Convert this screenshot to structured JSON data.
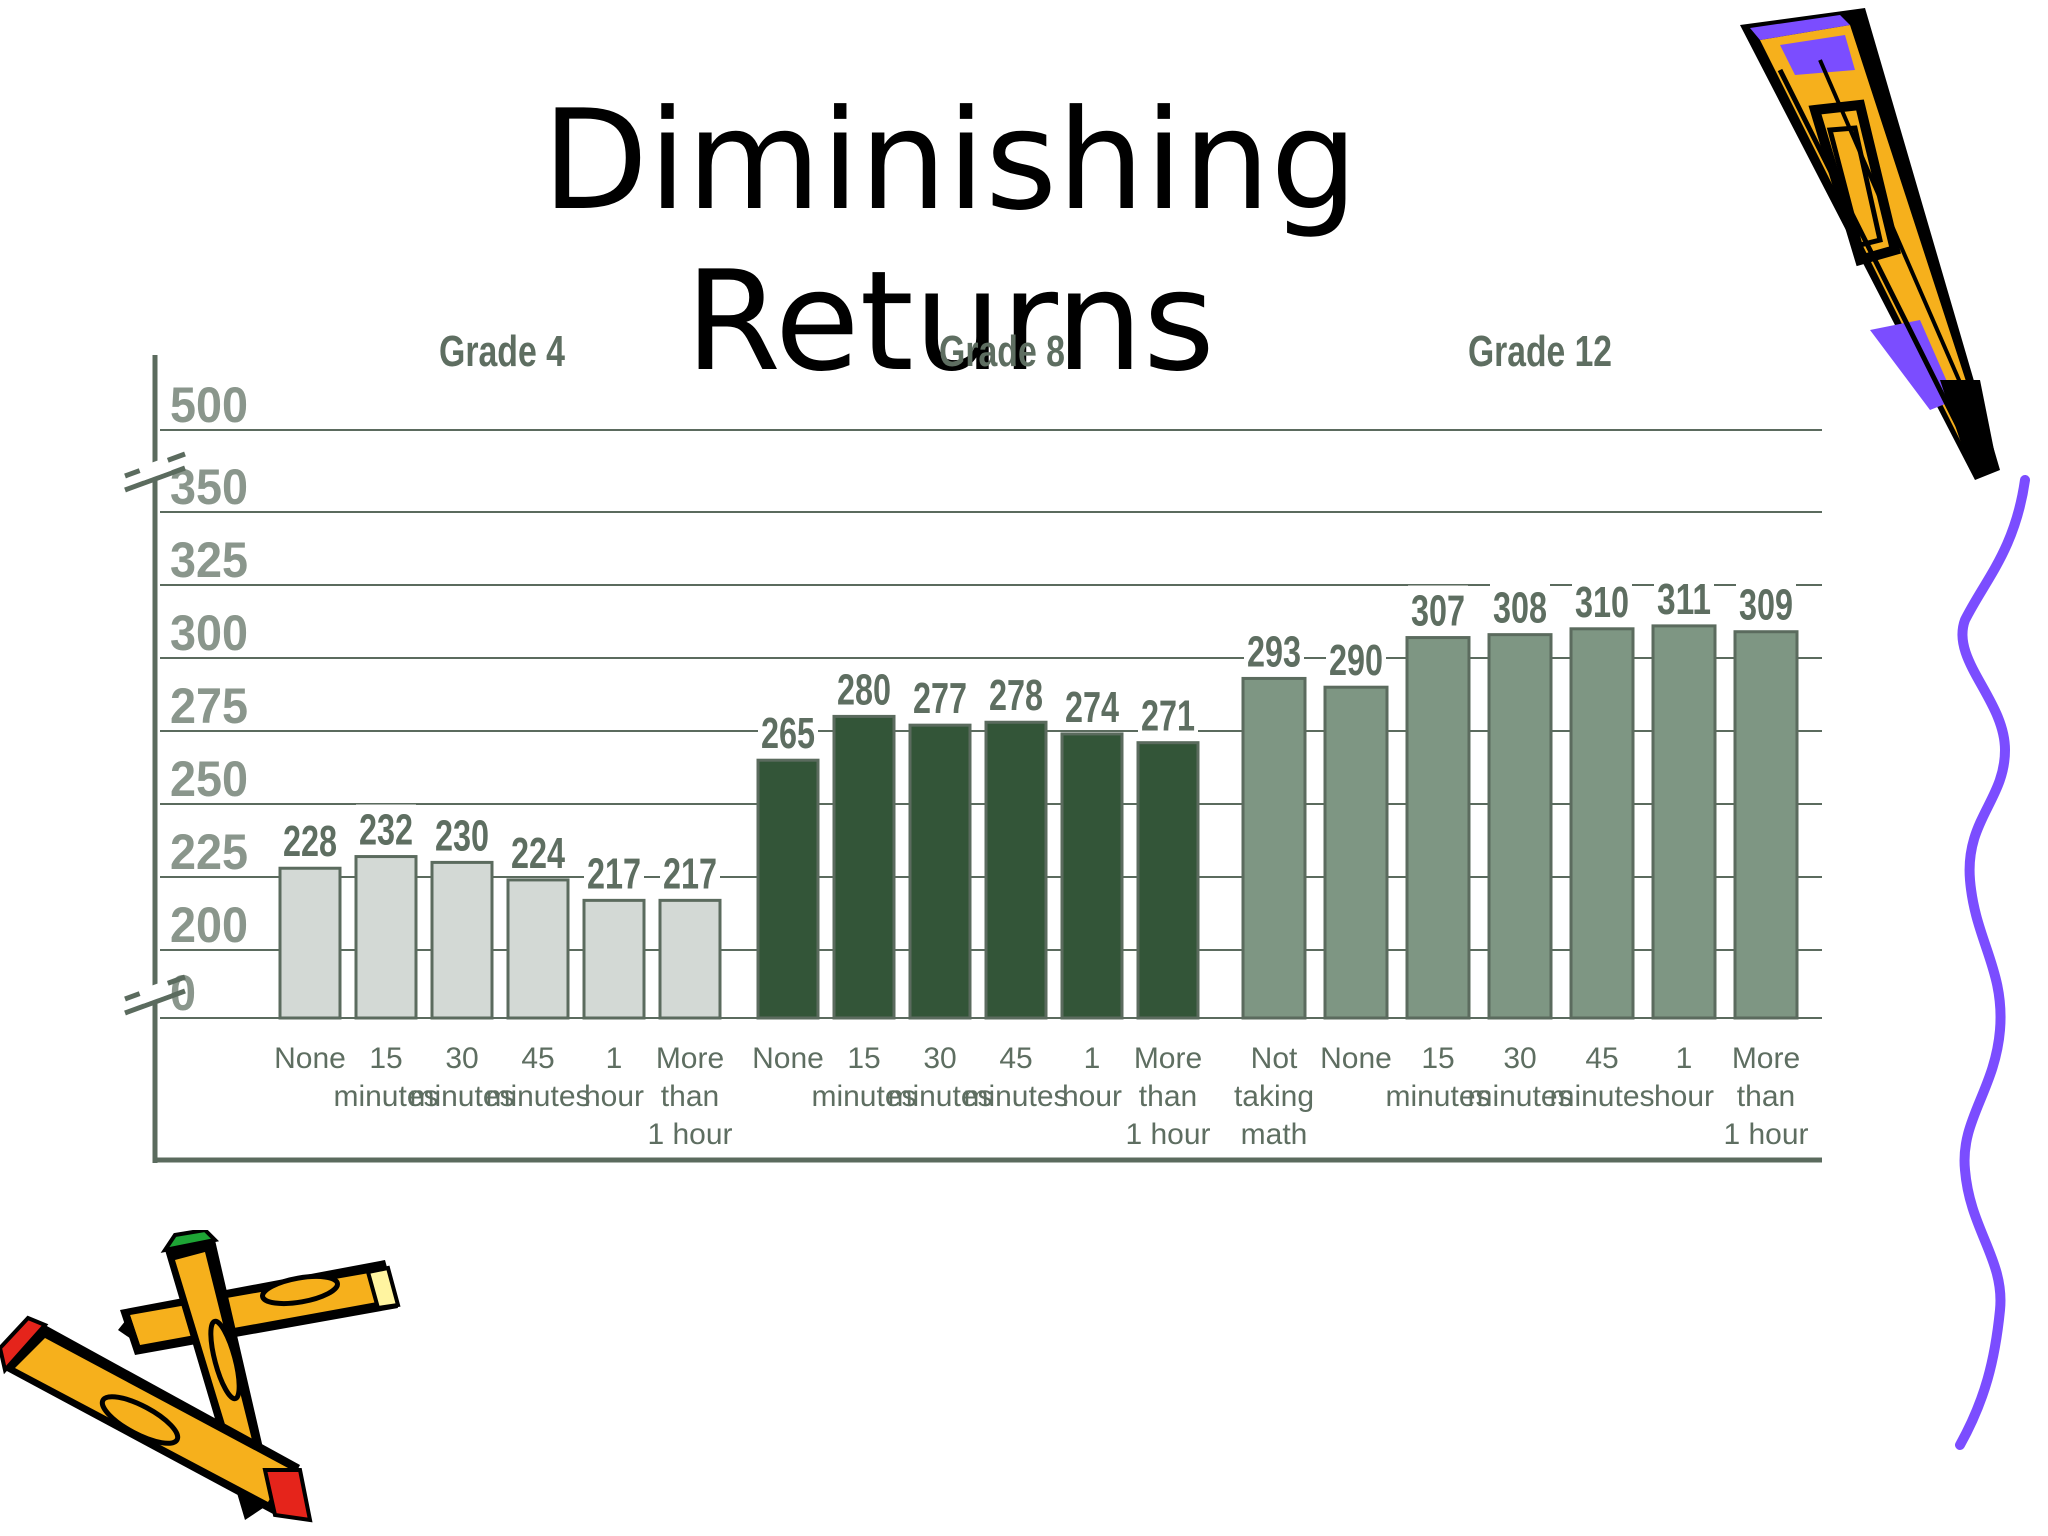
{
  "slide": {
    "title": "Diminishing Returns"
  },
  "colors": {
    "grade4": "#d3d9d5",
    "grade8": "#335538",
    "grade12": "#7e9683",
    "text": "#5e6e61",
    "grid": "#5b6b5e",
    "pencil_yellow": "#f6b01c",
    "pencil_purple": "#7b4dff",
    "pencil_red": "#e5241b",
    "pencil_green": "#1ea535"
  },
  "decorations": [
    "pencil-top-right-icon",
    "wavy-line-right-icon",
    "crossed-pencils-bottom-left-icon"
  ],
  "chart_data": {
    "type": "bar",
    "title": "",
    "xlabel": "",
    "ylabel": "",
    "yticks": [
      "500",
      "350",
      "325",
      "300",
      "275",
      "250",
      "225",
      "200",
      "0"
    ],
    "axis_breaks": [
      "200-0",
      "350-500"
    ],
    "ylim": [
      200,
      350
    ],
    "grid": true,
    "groups": [
      {
        "name": "Grade 4",
        "color": "#d3d9d5",
        "categories": [
          "None",
          "15 minutes",
          "30 minutes",
          "45 minutes",
          "1 hour",
          "More than 1 hour"
        ],
        "values": [
          228,
          232,
          230,
          224,
          217,
          217
        ]
      },
      {
        "name": "Grade 8",
        "color": "#335538",
        "categories": [
          "None",
          "15 minutes",
          "30 minutes",
          "45 minutes",
          "1 hour",
          "More than 1 hour"
        ],
        "values": [
          265,
          280,
          277,
          278,
          274,
          271
        ]
      },
      {
        "name": "Grade 12",
        "color": "#7e9683",
        "categories": [
          "Not taking math",
          "None",
          "15 minutes",
          "30 minutes",
          "45 minutes",
          "1 hour",
          "More than 1 hour"
        ],
        "values": [
          293,
          290,
          307,
          308,
          310,
          311,
          309
        ]
      }
    ]
  }
}
